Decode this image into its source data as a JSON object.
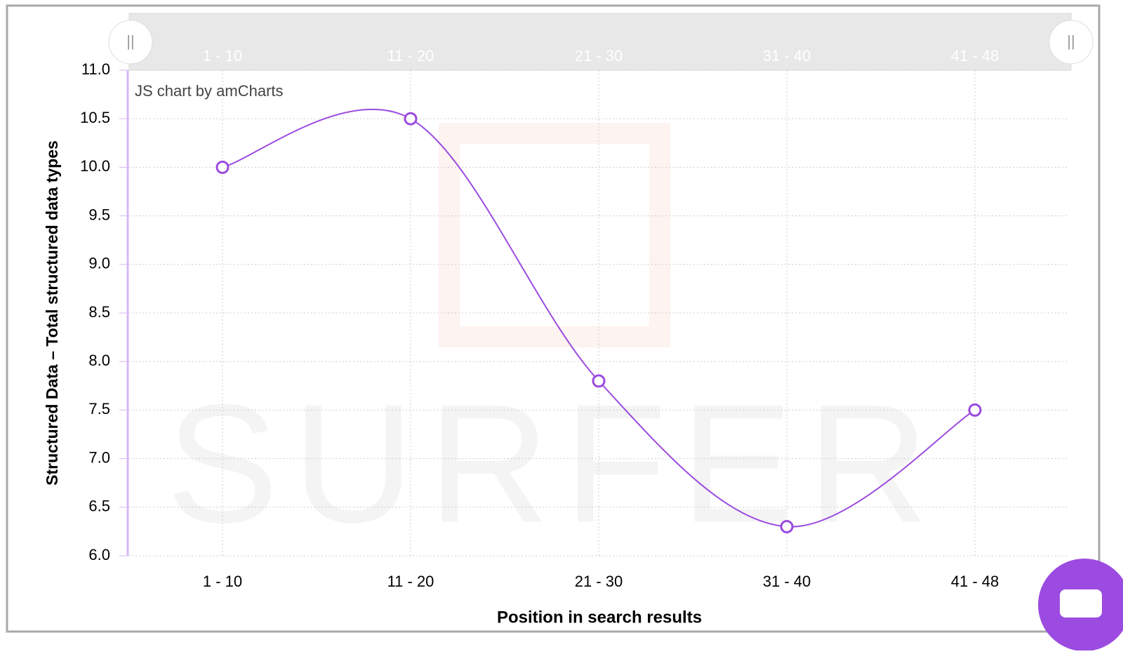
{
  "chart_data": {
    "type": "line",
    "y_axis_title": "Structured Data – Total structured data types",
    "x_axis_title": "Position in search results",
    "credit": "JS chart by amCharts",
    "watermark": "SURFER",
    "categories": [
      "1 - 10",
      "11 - 20",
      "21 - 30",
      "31 - 40",
      "41 - 48"
    ],
    "values": [
      10.0,
      10.5,
      7.8,
      6.3,
      7.5
    ],
    "color": "#9b4be0",
    "smooth": true,
    "grid": true,
    "ylim": [
      6,
      11
    ],
    "yticks": [
      {
        "value": 6,
        "label": "6.0"
      },
      6.5,
      {
        "value": 7,
        "label": "7.0"
      },
      7.5,
      {
        "value": 8,
        "label": "8.0"
      },
      8.5,
      {
        "value": 9,
        "label": "9.0"
      },
      9.5,
      {
        "value": 10,
        "label": "10.0"
      },
      10.5,
      {
        "value": 11,
        "label": "11.0"
      }
    ]
  }
}
